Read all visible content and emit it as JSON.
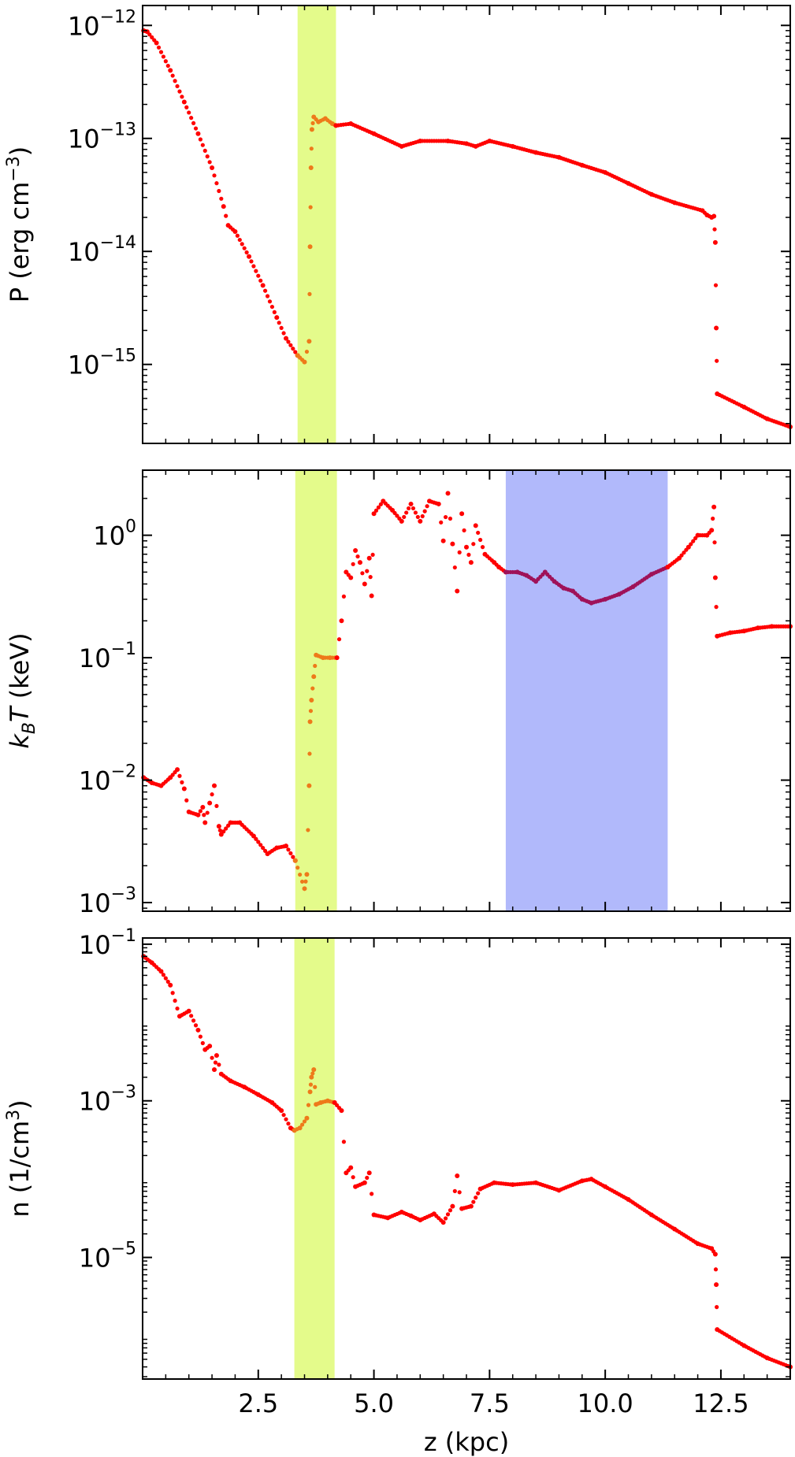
{
  "chart_data": [
    {
      "type": "scatter",
      "ylabel_parts": {
        "base": "P (erg cm",
        "sup": "−3",
        "tail": ")"
      },
      "yscale": "log",
      "ylim": [
        2e-16,
        1.5e-12
      ],
      "xlim": [
        0,
        14
      ],
      "yticks": [
        {
          "value": 1e-12,
          "base": "10",
          "exp": "−12"
        },
        {
          "value": 1e-13,
          "base": "10",
          "exp": "−13"
        },
        {
          "value": 1e-14,
          "base": "10",
          "exp": "−14"
        },
        {
          "value": 1e-15,
          "base": "10",
          "exp": "−15"
        }
      ],
      "shaded_bands": [
        {
          "x0": 3.35,
          "x1": 4.18,
          "color": "#e4fb8b"
        }
      ],
      "series": [
        {
          "color": "#ff0000",
          "points": [
            [
              0.02,
              9e-13
            ],
            [
              0.1,
              8.8e-13
            ],
            [
              0.3,
              7e-13
            ],
            [
              0.6,
              4e-13
            ],
            [
              0.9,
              2.1e-13
            ],
            [
              1.2,
              1.1e-13
            ],
            [
              1.5,
              5.5e-14
            ],
            [
              1.75,
              2.5e-14
            ],
            [
              1.85,
              1.7e-14
            ],
            [
              2.0,
              1.5e-14
            ],
            [
              2.3,
              9e-15
            ],
            [
              2.6,
              5e-15
            ],
            [
              2.9,
              2.6e-15
            ],
            [
              3.1,
              1.7e-15
            ],
            [
              3.35,
              1.2e-15
            ]
          ]
        },
        {
          "color": "#ee7a1a",
          "points": [
            [
              3.35,
              1.2e-15
            ],
            [
              3.5,
              1.05e-15
            ],
            [
              3.6,
              1.6e-15
            ],
            [
              3.62,
              1.1e-14
            ],
            [
              3.64,
              5.5e-14
            ],
            [
              3.66,
              1.2e-13
            ],
            [
              3.7,
              1.55e-13
            ],
            [
              3.8,
              1.4e-13
            ],
            [
              3.95,
              1.5e-13
            ],
            [
              4.1,
              1.35e-13
            ],
            [
              4.18,
              1.3e-13
            ]
          ]
        },
        {
          "color": "#ff0000",
          "points": [
            [
              4.18,
              1.3e-13
            ],
            [
              4.5,
              1.35e-13
            ],
            [
              5.0,
              1.1e-13
            ],
            [
              5.6,
              8.5e-14
            ],
            [
              6.0,
              9.5e-14
            ],
            [
              6.6,
              9.5e-14
            ],
            [
              7.0,
              9e-14
            ],
            [
              7.2,
              8.5e-14
            ],
            [
              7.5,
              9.5e-14
            ],
            [
              8.0,
              8.5e-14
            ],
            [
              8.5,
              7.5e-14
            ],
            [
              9.0,
              6.8e-14
            ],
            [
              9.5,
              5.8e-14
            ],
            [
              10.0,
              5e-14
            ],
            [
              10.5,
              4e-14
            ],
            [
              11.0,
              3.2e-14
            ],
            [
              11.5,
              2.7e-14
            ],
            [
              12.1,
              2.3e-14
            ],
            [
              12.2,
              2.1e-14
            ],
            [
              12.3,
              2e-14
            ],
            [
              12.35,
              2.05e-14
            ],
            [
              12.38,
              1.2e-14
            ],
            [
              12.4,
              2.1e-15
            ],
            [
              12.42,
              5.5e-16
            ],
            [
              13.0,
              4.2e-16
            ],
            [
              13.5,
              3.3e-16
            ],
            [
              14.0,
              2.8e-16
            ]
          ]
        }
      ]
    },
    {
      "type": "scatter",
      "ylabel_parts": {
        "k": "k",
        "sub": "B",
        "t": "T",
        "tail": " (keV)"
      },
      "yscale": "log",
      "ylim": [
        0.00085,
        3.4
      ],
      "xlim": [
        0,
        14
      ],
      "yticks": [
        {
          "value": 1,
          "base": "10",
          "exp": "0"
        },
        {
          "value": 0.1,
          "base": "10",
          "exp": "−1"
        },
        {
          "value": 0.01,
          "base": "10",
          "exp": "−2"
        },
        {
          "value": 0.001,
          "base": "10",
          "exp": "−3"
        }
      ],
      "shaded_bands": [
        {
          "x0": 3.3,
          "x1": 4.2,
          "color": "#e4fb8b"
        },
        {
          "x0": 7.85,
          "x1": 11.35,
          "color": "#b1b9fb"
        }
      ],
      "series": [
        {
          "color": "#ff0000",
          "points": [
            [
              0.02,
              0.0105
            ],
            [
              0.2,
              0.0095
            ],
            [
              0.4,
              0.009
            ],
            [
              0.6,
              0.0105
            ],
            [
              0.75,
              0.0122
            ],
            [
              0.9,
              0.0085
            ],
            [
              1.0,
              0.0055
            ],
            [
              1.2,
              0.0052
            ],
            [
              1.3,
              0.006
            ],
            [
              1.35,
              0.0045
            ],
            [
              1.45,
              0.0065
            ],
            [
              1.55,
              0.009
            ],
            [
              1.65,
              0.0042
            ],
            [
              1.7,
              0.0036
            ],
            [
              1.9,
              0.0045
            ],
            [
              2.1,
              0.0045
            ],
            [
              2.4,
              0.0035
            ],
            [
              2.7,
              0.0025
            ],
            [
              2.9,
              0.0028
            ],
            [
              3.1,
              0.0029
            ],
            [
              3.3,
              0.0022
            ]
          ]
        },
        {
          "color": "#ee7a1a",
          "points": [
            [
              3.3,
              0.0022
            ],
            [
              3.5,
              0.0013
            ],
            [
              3.55,
              0.0017
            ],
            [
              3.6,
              0.009
            ],
            [
              3.62,
              0.03
            ],
            [
              3.65,
              0.045
            ],
            [
              3.7,
              0.07
            ],
            [
              3.75,
              0.105
            ],
            [
              3.9,
              0.1
            ],
            [
              4.05,
              0.1
            ],
            [
              4.2,
              0.1
            ]
          ]
        },
        {
          "color": "#ff0000",
          "points": [
            [
              4.2,
              0.1
            ],
            [
              4.3,
              0.2
            ],
            [
              4.4,
              0.5
            ],
            [
              4.5,
              0.45
            ],
            [
              4.6,
              0.75
            ],
            [
              4.7,
              0.6
            ],
            [
              4.8,
              0.4
            ],
            [
              4.9,
              0.65
            ],
            [
              4.95,
              0.32
            ],
            [
              5.0,
              1.5
            ],
            [
              5.2,
              1.9
            ],
            [
              5.4,
              1.6
            ],
            [
              5.6,
              1.3
            ],
            [
              5.8,
              1.8
            ],
            [
              6.0,
              1.3
            ],
            [
              6.2,
              1.9
            ],
            [
              6.4,
              1.8
            ],
            [
              6.5,
              0.9
            ],
            [
              6.6,
              2.2
            ],
            [
              6.7,
              0.85
            ],
            [
              6.8,
              0.35
            ],
            [
              6.9,
              1.5
            ],
            [
              7.0,
              0.8
            ],
            [
              7.1,
              0.6
            ],
            [
              7.2,
              1.2
            ],
            [
              7.4,
              0.7
            ],
            [
              7.6,
              0.6
            ],
            [
              7.7,
              0.55
            ],
            [
              7.85,
              0.5
            ]
          ]
        },
        {
          "color": "#9f1259",
          "points": [
            [
              7.85,
              0.5
            ],
            [
              8.1,
              0.5
            ],
            [
              8.3,
              0.47
            ],
            [
              8.5,
              0.42
            ],
            [
              8.7,
              0.5
            ],
            [
              8.9,
              0.42
            ],
            [
              9.1,
              0.37
            ],
            [
              9.3,
              0.35
            ],
            [
              9.5,
              0.3
            ],
            [
              9.7,
              0.28
            ],
            [
              10.0,
              0.3
            ],
            [
              10.3,
              0.33
            ],
            [
              10.6,
              0.38
            ],
            [
              11.0,
              0.48
            ],
            [
              11.35,
              0.55
            ]
          ]
        },
        {
          "color": "#ff0000",
          "points": [
            [
              11.35,
              0.55
            ],
            [
              11.6,
              0.65
            ],
            [
              11.8,
              0.8
            ],
            [
              12.0,
              1.0
            ],
            [
              12.2,
              1.0
            ],
            [
              12.3,
              1.1
            ],
            [
              12.35,
              1.7
            ],
            [
              12.38,
              0.45
            ],
            [
              12.42,
              0.15
            ],
            [
              12.7,
              0.16
            ],
            [
              13.0,
              0.165
            ],
            [
              13.3,
              0.175
            ],
            [
              13.6,
              0.18
            ],
            [
              14.0,
              0.18
            ]
          ]
        }
      ]
    },
    {
      "type": "scatter",
      "ylabel_parts": {
        "base": "n (1/cm",
        "sup": "3",
        "tail": ")"
      },
      "yscale": "log",
      "ylim": [
        2.8e-07,
        0.12
      ],
      "xlim": [
        0,
        14
      ],
      "xlabel": "z (kpc)",
      "xticks": [
        {
          "value": 2.5,
          "label": "2.5"
        },
        {
          "value": 5.0,
          "label": "5.0"
        },
        {
          "value": 7.5,
          "label": "7.5"
        },
        {
          "value": 10.0,
          "label": "10.0"
        },
        {
          "value": 12.5,
          "label": "12.5"
        }
      ],
      "yticks": [
        {
          "value": 0.1,
          "base": "10",
          "exp": "−1"
        },
        {
          "value": 0.001,
          "base": "10",
          "exp": "−3"
        },
        {
          "value": 1e-05,
          "base": "10",
          "exp": "−5"
        }
      ],
      "shaded_bands": [
        {
          "x0": 3.28,
          "x1": 4.15,
          "color": "#e4fb8b"
        }
      ],
      "series": [
        {
          "color": "#ff0000",
          "points": [
            [
              0.02,
              0.07
            ],
            [
              0.2,
              0.058
            ],
            [
              0.4,
              0.045
            ],
            [
              0.6,
              0.03
            ],
            [
              0.8,
              0.012
            ],
            [
              1.0,
              0.014
            ],
            [
              1.2,
              0.008
            ],
            [
              1.35,
              0.0045
            ],
            [
              1.45,
              0.005
            ],
            [
              1.55,
              0.0025
            ],
            [
              1.6,
              0.0038
            ],
            [
              1.7,
              0.0022
            ],
            [
              1.9,
              0.0018
            ],
            [
              2.2,
              0.0015
            ],
            [
              2.5,
              0.0012
            ],
            [
              2.8,
              0.00095
            ],
            [
              3.0,
              0.00075
            ],
            [
              3.2,
              0.00045
            ],
            [
              3.28,
              0.00042
            ]
          ]
        },
        {
          "color": "#ee7a1a",
          "points": [
            [
              3.28,
              0.00042
            ],
            [
              3.4,
              0.00045
            ],
            [
              3.55,
              0.0006
            ],
            [
              3.62,
              0.0013
            ],
            [
              3.65,
              0.002
            ],
            [
              3.7,
              0.0025
            ],
            [
              3.75,
              0.0009
            ],
            [
              3.85,
              0.00095
            ],
            [
              4.0,
              0.001
            ],
            [
              4.15,
              0.00095
            ]
          ]
        },
        {
          "color": "#ff0000",
          "points": [
            [
              4.15,
              0.00095
            ],
            [
              4.3,
              0.00075
            ],
            [
              4.4,
              0.00012
            ],
            [
              4.5,
              0.00014
            ],
            [
              4.6,
              8e-05
            ],
            [
              4.8,
              9e-05
            ],
            [
              4.9,
              0.00012
            ],
            [
              5.0,
              3.5e-05
            ],
            [
              5.3,
              3.2e-05
            ],
            [
              5.6,
              3.8e-05
            ],
            [
              5.8,
              3.4e-05
            ],
            [
              6.0,
              3e-05
            ],
            [
              6.3,
              3.6e-05
            ],
            [
              6.5,
              2.8e-05
            ],
            [
              6.7,
              4.5e-05
            ],
            [
              6.8,
              0.00011
            ],
            [
              6.9,
              4.2e-05
            ],
            [
              7.1,
              4.5e-05
            ],
            [
              7.3,
              7.5e-05
            ],
            [
              7.6,
              9e-05
            ],
            [
              8.0,
              8.5e-05
            ],
            [
              8.5,
              9e-05
            ],
            [
              9.0,
              7.2e-05
            ],
            [
              9.5,
              9.5e-05
            ],
            [
              9.7,
              0.0001
            ],
            [
              10.0,
              8e-05
            ],
            [
              10.5,
              5.5e-05
            ],
            [
              11.0,
              3.5e-05
            ],
            [
              11.5,
              2.3e-05
            ],
            [
              12.0,
              1.5e-05
            ],
            [
              12.3,
              1.3e-05
            ],
            [
              12.38,
              1.1e-05
            ],
            [
              12.4,
              4.5e-06
            ],
            [
              12.42,
              1.2e-06
            ],
            [
              13.0,
              7.5e-07
            ],
            [
              13.5,
              5.2e-07
            ],
            [
              14.0,
              4e-07
            ]
          ]
        }
      ]
    }
  ]
}
